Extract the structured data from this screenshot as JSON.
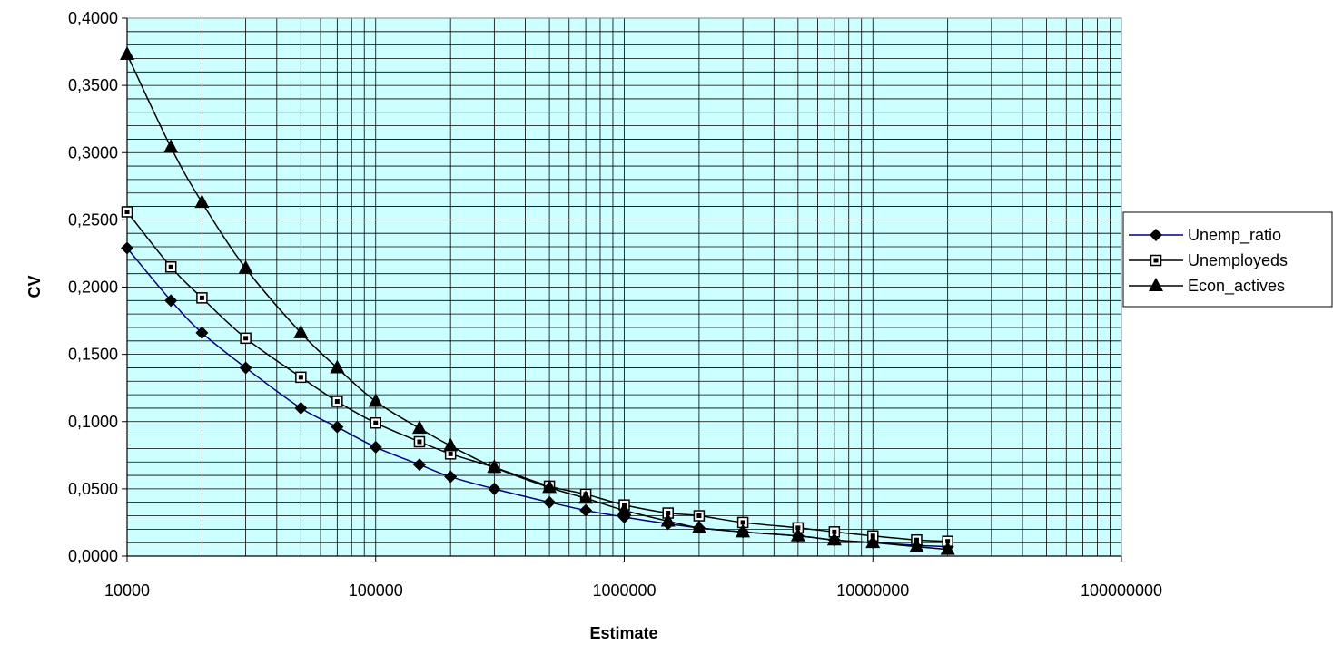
{
  "chart_data": {
    "type": "line",
    "xscale": "log",
    "xlabel": "Estimate",
    "ylabel": "CV",
    "xlim": [
      10000,
      100000000
    ],
    "ylim": [
      0,
      0.4
    ],
    "x_tick_labels": [
      "10000",
      "100000",
      "1000000",
      "10000000",
      "100000000"
    ],
    "y_tick_labels": [
      "0,0000",
      "0,0500",
      "0,1000",
      "0,1500",
      "0,2000",
      "0,2500",
      "0,3000",
      "0,3500",
      "0,4000"
    ],
    "grid": true,
    "legend_position": "right",
    "plot_background": "#ccffff",
    "x": [
      10000,
      15000,
      20000,
      30000,
      50000,
      70000,
      100000,
      150000,
      200000,
      300000,
      500000,
      700000,
      1000000,
      1500000,
      2000000,
      3000000,
      5000000,
      7000000,
      10000000,
      15000000,
      20000000
    ],
    "series": [
      {
        "name": "Unemp_ratio",
        "marker": "diamond",
        "line_color": "#000080",
        "marker_color": "#000000",
        "values": [
          0.229,
          0.19,
          0.166,
          0.14,
          0.11,
          0.096,
          0.081,
          0.068,
          0.059,
          0.05,
          0.04,
          0.034,
          0.029,
          0.024,
          0.021,
          0.018,
          0.015,
          0.012,
          0.01,
          0.008,
          0.007
        ]
      },
      {
        "name": "Unemployeds",
        "marker": "square",
        "line_color": "#000000",
        "marker_color": "#000000",
        "values": [
          0.256,
          0.215,
          0.192,
          0.162,
          0.133,
          0.115,
          0.099,
          0.085,
          0.076,
          0.066,
          0.052,
          0.046,
          0.038,
          0.032,
          0.03,
          0.025,
          0.021,
          0.018,
          0.015,
          0.012,
          0.011
        ]
      },
      {
        "name": "Econ_actives",
        "marker": "triangle",
        "line_color": "#000000",
        "marker_color": "#000000",
        "values": [
          0.373,
          0.304,
          0.263,
          0.214,
          0.166,
          0.14,
          0.115,
          0.095,
          0.082,
          0.066,
          0.051,
          0.043,
          0.034,
          0.026,
          0.021,
          0.018,
          0.015,
          0.012,
          0.01,
          0.007,
          0.005
        ]
      }
    ]
  }
}
